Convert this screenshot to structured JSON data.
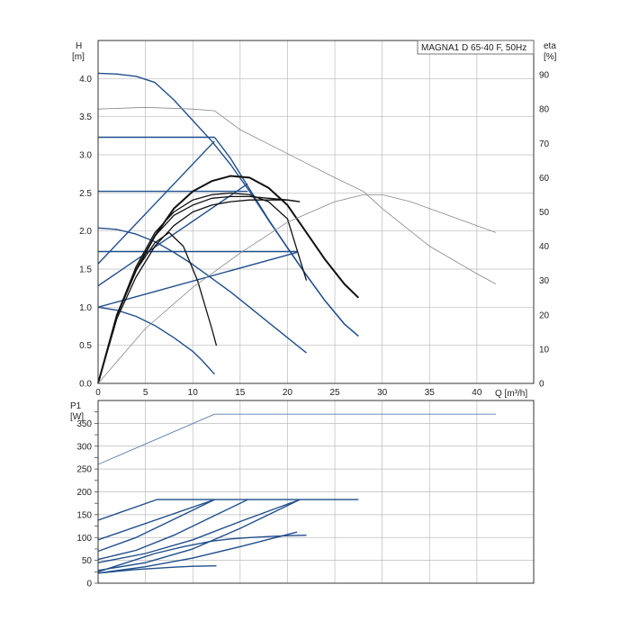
{
  "chart_data": [
    {
      "type": "line",
      "title": "MAGNA1 D 65-40 F, 50Hz",
      "xlabel": "Q [m³/h]",
      "ylabel_left": "H",
      "ylabel_left_unit": "[m]",
      "ylabel_right": "eta",
      "ylabel_right_unit": "[%]",
      "xlim": [
        0,
        46
      ],
      "ylim": [
        0,
        4.5
      ],
      "ylim_right": [
        0,
        100
      ],
      "x_ticks": [
        0,
        5,
        10,
        15,
        20,
        25,
        30,
        35,
        40
      ],
      "y_ticks": [
        0.0,
        0.5,
        1.0,
        1.5,
        2.0,
        2.5,
        3.0,
        3.5,
        4.0
      ],
      "y_tick_labels": [
        "0.0",
        "0.5",
        "1.0",
        "1.5",
        "2.0",
        "2.5",
        "3.0",
        "3.5",
        "4.0"
      ],
      "y_right_ticks": [
        0,
        10,
        20,
        30,
        40,
        50,
        60,
        70,
        80,
        90
      ],
      "grid": true,
      "colors": {
        "pump_curve": "#1f4e8c",
        "efficiency": "#444444",
        "efficiency_thin": "#888888",
        "grid": "#bbbbbb"
      },
      "series": [
        {
          "role": "max_speed",
          "x": [
            0,
            2,
            4,
            6,
            8,
            10,
            12,
            14,
            16,
            18,
            20,
            22,
            24,
            26,
            27.5
          ],
          "y": [
            4.07,
            4.06,
            4.03,
            3.95,
            3.72,
            3.45,
            3.18,
            2.87,
            2.52,
            2.14,
            1.78,
            1.42,
            1.08,
            0.78,
            0.62
          ]
        },
        {
          "role": "const_pressure_high",
          "x": [
            0,
            12.3
          ],
          "y": [
            3.23,
            3.23
          ]
        },
        {
          "role": "const_pressure_high_tail",
          "x": [
            12.3,
            14,
            16,
            18,
            20,
            22,
            24,
            26,
            27.5
          ],
          "y": [
            3.23,
            2.95,
            2.55,
            2.15,
            1.78,
            1.42,
            1.08,
            0.78,
            0.62
          ]
        },
        {
          "role": "prop_pressure_high",
          "x": [
            0,
            12.3
          ],
          "y": [
            1.57,
            3.18
          ]
        },
        {
          "role": "const_pressure_mid",
          "x": [
            0,
            15.8
          ],
          "y": [
            2.52,
            2.52
          ]
        },
        {
          "role": "prop_pressure_mid",
          "x": [
            0,
            15.8
          ],
          "y": [
            1.28,
            2.62
          ]
        },
        {
          "role": "const_pressure_low",
          "x": [
            0,
            21
          ],
          "y": [
            1.73,
            1.73
          ]
        },
        {
          "role": "prop_pressure_low",
          "x": [
            0,
            21
          ],
          "y": [
            1.0,
            1.72
          ]
        },
        {
          "role": "min_curve",
          "x": [
            0,
            2,
            4,
            6,
            8,
            10,
            12,
            14,
            16,
            18,
            20,
            22
          ],
          "y": [
            2.04,
            2.02,
            1.96,
            1.86,
            1.72,
            1.56,
            1.38,
            1.2,
            1.0,
            0.8,
            0.6,
            0.4
          ]
        },
        {
          "role": "night_curve",
          "x": [
            0,
            2,
            4,
            6,
            8,
            10,
            11,
            12.3
          ],
          "y": [
            1.0,
            0.96,
            0.88,
            0.76,
            0.6,
            0.42,
            0.3,
            0.12
          ]
        },
        {
          "role": "eta_max",
          "x": [
            0,
            2,
            4,
            6,
            8,
            10,
            12,
            14,
            16,
            18,
            20,
            22,
            24,
            26,
            27.5
          ],
          "y_pct": [
            0,
            20,
            33,
            43,
            51,
            56,
            59,
            60.5,
            60,
            57,
            52,
            44,
            36,
            29,
            25
          ]
        },
        {
          "role": "eta_1",
          "x": [
            0,
            2,
            4,
            6,
            8,
            10,
            12,
            14,
            16,
            18,
            20,
            21.3
          ],
          "y_pct": [
            0,
            20,
            33,
            43,
            49,
            52,
            54,
            54.5,
            54.5,
            54,
            53.5,
            53
          ]
        },
        {
          "role": "eta_2",
          "x": [
            0,
            2,
            4,
            6,
            8,
            10,
            12,
            14,
            16,
            18,
            20,
            22
          ],
          "y_pct": [
            0,
            20,
            34,
            44,
            50,
            53.5,
            55,
            55.5,
            55,
            53,
            48,
            30
          ]
        },
        {
          "role": "eta_3",
          "x": [
            0,
            2,
            4,
            6,
            8,
            10,
            12,
            14,
            16,
            18,
            20,
            21.3
          ],
          "y_pct": [
            0,
            19,
            31,
            40,
            46,
            50,
            52,
            53,
            53.5,
            53.5,
            53.5,
            53
          ]
        },
        {
          "role": "eta_night",
          "x": [
            0,
            2,
            4,
            6,
            7.5,
            9,
            10.5,
            12,
            12.5
          ],
          "y_pct": [
            0,
            20,
            33,
            41,
            44,
            40,
            30,
            16,
            11
          ]
        },
        {
          "role": "eta_wide",
          "x": [
            0,
            5,
            10,
            15,
            20,
            25,
            28,
            30,
            33,
            35,
            38,
            42
          ],
          "y_pct": [
            0,
            16,
            28,
            38,
            47,
            53,
            55,
            55,
            53,
            51,
            48,
            44
          ]
        },
        {
          "role": "eta_edge",
          "x": [
            0,
            5,
            10,
            12.3,
            15,
            20,
            25,
            28,
            30,
            35,
            40,
            42
          ],
          "y_pct": [
            80,
            80.5,
            80,
            79.5,
            74,
            67,
            60,
            56,
            51,
            40,
            32,
            29
          ]
        }
      ]
    },
    {
      "type": "line",
      "ylabel": "P1",
      "ylabel_unit": "[W]",
      "xlim": [
        0,
        46
      ],
      "ylim": [
        0,
        400
      ],
      "y_ticks": [
        0,
        25,
        50,
        75,
        100,
        125,
        150,
        175,
        200,
        225,
        250,
        275,
        300,
        325,
        350,
        375
      ],
      "y_tick_labels": [
        "0",
        "",
        "50",
        "",
        "100",
        "",
        "150",
        "",
        "200",
        "",
        "250",
        "",
        "300",
        "",
        "350",
        ""
      ],
      "grid": true,
      "series": [
        {
          "role": "p1_max_thin",
          "x": [
            0,
            12.3,
            42
          ],
          "y": [
            260,
            370,
            370
          ]
        },
        {
          "role": "p1_const_high",
          "x": [
            0,
            6.2,
            27.5
          ],
          "y": [
            138,
            183,
            183
          ]
        },
        {
          "role": "p1_prop_high",
          "x": [
            0,
            12.3
          ],
          "y": [
            95,
            183
          ]
        },
        {
          "role": "p1_a",
          "x": [
            0,
            4,
            8,
            12.3
          ],
          "y": [
            70,
            100,
            140,
            183
          ]
        },
        {
          "role": "p1_b",
          "x": [
            0,
            4,
            8,
            12,
            15.8
          ],
          "y": [
            52,
            72,
            105,
            145,
            183
          ]
        },
        {
          "role": "p1_c",
          "x": [
            0,
            5,
            10,
            15,
            21.3
          ],
          "y": [
            45,
            65,
            95,
            135,
            183
          ]
        },
        {
          "role": "p1_d",
          "x": [
            0,
            5,
            10,
            15,
            21.3
          ],
          "y": [
            28,
            45,
            75,
            120,
            183
          ]
        },
        {
          "role": "p1_e",
          "x": [
            0,
            5,
            10,
            15,
            21
          ],
          "y": [
            22,
            36,
            55,
            80,
            112
          ]
        },
        {
          "role": "p1_f",
          "x": [
            0,
            3,
            6,
            9,
            12,
            14,
            16,
            18,
            20,
            22
          ],
          "y": [
            25,
            45,
            65,
            80,
            92,
            97,
            100,
            102,
            104,
            105
          ]
        },
        {
          "role": "p1_g",
          "x": [
            0,
            4,
            8,
            10,
            12.5
          ],
          "y": [
            22,
            30,
            35,
            37,
            38
          ]
        }
      ]
    }
  ]
}
